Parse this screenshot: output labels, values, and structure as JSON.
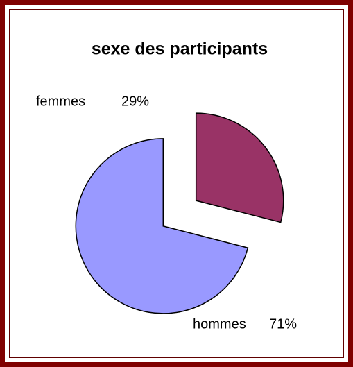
{
  "chart_data": {
    "type": "pie",
    "title": "sexe des participants",
    "categories": [
      "femmes",
      "hommes"
    ],
    "values": [
      29,
      71
    ],
    "value_labels": [
      "29%",
      "71%"
    ],
    "colors": [
      "#993366",
      "#9999ff"
    ]
  }
}
